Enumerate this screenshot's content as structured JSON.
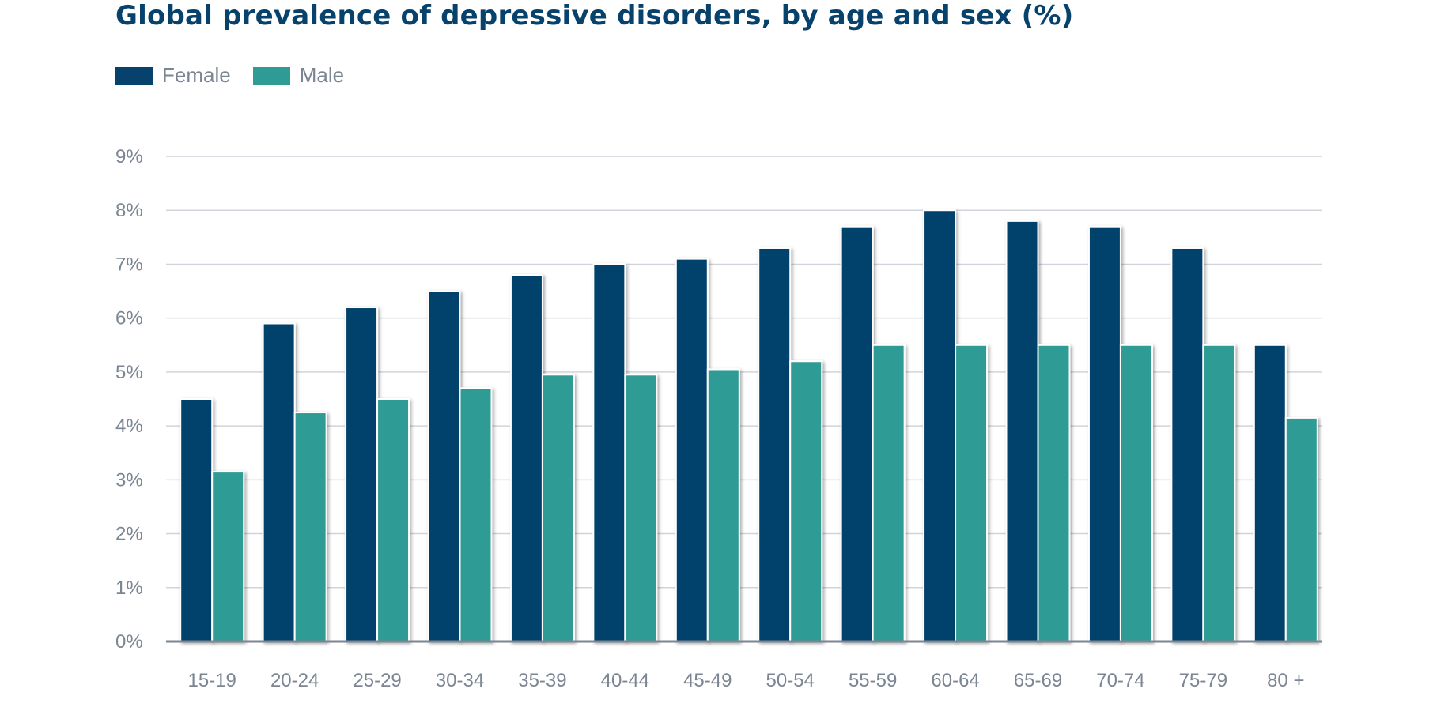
{
  "chart_data": {
    "type": "bar",
    "title": "Global prevalence of depressive disorders, by age and sex (%)",
    "xlabel": "",
    "ylabel": "",
    "categories": [
      "15-19",
      "20-24",
      "25-29",
      "30-34",
      "35-39",
      "40-44",
      "45-49",
      "50-54",
      "55-59",
      "60-64",
      "65-69",
      "70-74",
      "75-79",
      "80 +"
    ],
    "series": [
      {
        "name": "Female",
        "color": "#06426c",
        "values": [
          4.5,
          5.9,
          6.2,
          6.5,
          6.8,
          7.0,
          7.1,
          7.3,
          7.7,
          8.0,
          7.8,
          7.7,
          7.3,
          5.5
        ]
      },
      {
        "name": "Male",
        "color": "#2e9b94",
        "values": [
          3.15,
          4.25,
          4.5,
          4.7,
          4.95,
          4.95,
          5.05,
          5.2,
          5.5,
          5.5,
          5.5,
          5.5,
          5.5,
          4.15
        ]
      }
    ],
    "ylim": [
      0,
      9
    ],
    "yticks": [
      0,
      1,
      2,
      3,
      4,
      5,
      6,
      7,
      8,
      9
    ],
    "ytick_labels": [
      "0%",
      "1%",
      "2%",
      "3%",
      "4%",
      "5%",
      "6%",
      "7%",
      "8%",
      "9%"
    ],
    "grid": true,
    "legend_position": "top-left"
  },
  "colors": {
    "title": "#06426c",
    "female": "#06426c",
    "male": "#2e9b94",
    "grid": "#d0d4da",
    "axis": "#7b8593",
    "tick_text": "#7b8593"
  }
}
